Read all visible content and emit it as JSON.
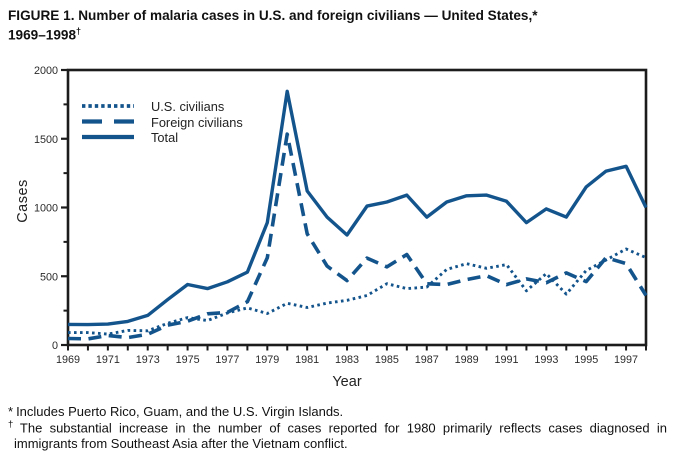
{
  "title": {
    "line1": "FIGURE 1. Number of malaria cases in U.S. and foreign civilians — United States,*",
    "line2": "1969–1998",
    "line2_sup": "†"
  },
  "chart_data": {
    "type": "line",
    "title": "Number of malaria cases in U.S. and foreign civilians — United States, 1969–1998",
    "xlabel": "Year",
    "ylabel": "Cases",
    "x_range": [
      1969,
      1998
    ],
    "y_range": [
      0,
      2000
    ],
    "x_tick_labels": [
      1969,
      1971,
      1973,
      1975,
      1977,
      1979,
      1981,
      1983,
      1985,
      1987,
      1989,
      1991,
      1993,
      1995,
      1997
    ],
    "y_major_ticks": [
      0,
      500,
      1000,
      1500,
      2000
    ],
    "y_minor_ticks": [
      250,
      750,
      1250,
      1750
    ],
    "grid": false,
    "legend_position": "inside-top-left",
    "line_color": "#14548C",
    "years": [
      1969,
      1970,
      1971,
      1972,
      1973,
      1974,
      1975,
      1976,
      1977,
      1978,
      1979,
      1980,
      1981,
      1982,
      1983,
      1984,
      1985,
      1986,
      1987,
      1988,
      1989,
      1990,
      1991,
      1992,
      1993,
      1994,
      1995,
      1996,
      1997,
      1998
    ],
    "series": [
      {
        "key": "us",
        "name": "U.S. civilians",
        "style": "dotted",
        "values": [
          90,
          90,
          79,
          106,
          103,
          158,
          199,
          178,
          233,
          270,
          229,
          303,
          273,
          305,
          325,
          360,
          446,
          410,
          421,
          550,
          591,
          558,
          585,
          394,
          519,
          370,
          542,
          618,
          698,
          636
        ]
      },
      {
        "key": "foreign",
        "name": "Foreign  civilians",
        "style": "dashed",
        "values": [
          47,
          44,
          69,
          54,
          78,
          144,
          173,
          227,
          237,
          315,
          634,
          1534,
          809,
          574,
          468,
          632,
          568,
          658,
          445,
          440,
          476,
          504,
          439,
          481,
          453,
          524,
          461,
          636,
          592,
          361
        ]
      },
      {
        "key": "total",
        "name": "Total",
        "style": "solid",
        "values": [
          150,
          148,
          152,
          172,
          215,
          330,
          440,
          410,
          460,
          530,
          890,
          1845,
          1120,
          930,
          800,
          1010,
          1040,
          1090,
          930,
          1040,
          1085,
          1090,
          1045,
          890,
          990,
          930,
          1150,
          1265,
          1300,
          1000
        ]
      }
    ]
  },
  "footnotes": [
    {
      "marker": "*",
      "text": "Includes Puerto Rico, Guam, and the U.S. Virgin Islands."
    },
    {
      "marker": "†",
      "text": "The substantial increase in the number of cases reported for 1980 primarily reflects cases diagnosed in immigrants from Southeast Asia after the Vietnam conflict."
    }
  ]
}
